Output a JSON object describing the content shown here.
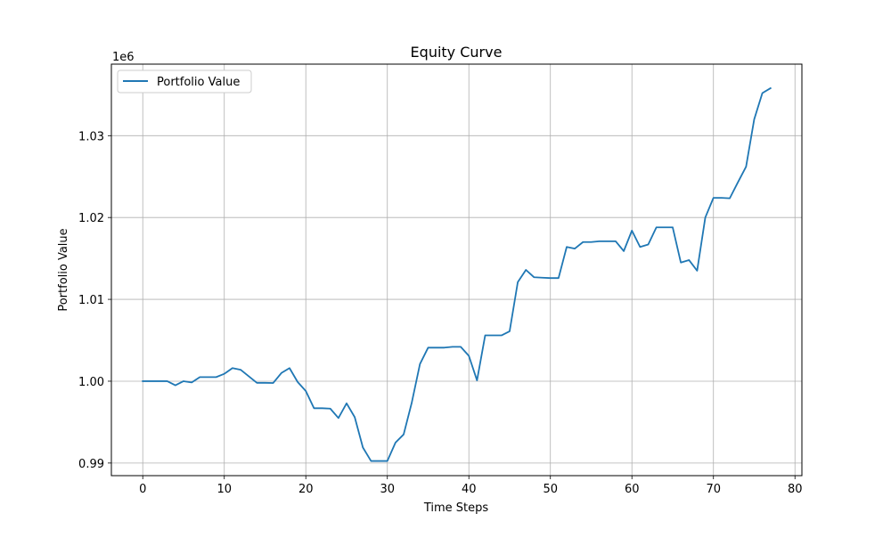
{
  "chart_data": {
    "type": "line",
    "title": "Equity Curve",
    "xlabel": "Time Steps",
    "ylabel": "Portfolio Value",
    "y_offset_label": "1e6",
    "xlim": [
      -3.85,
      80.85
    ],
    "ylim": [
      988460,
      1038740
    ],
    "x_ticks": [
      0,
      10,
      20,
      30,
      40,
      50,
      60,
      70,
      80
    ],
    "x_tick_labels": [
      "0",
      "10",
      "20",
      "30",
      "40",
      "50",
      "60",
      "70",
      "80"
    ],
    "y_ticks": [
      990000,
      1000000,
      1010000,
      1020000,
      1030000
    ],
    "y_tick_labels": [
      "0.99",
      "1.00",
      "1.01",
      "1.02",
      "1.03"
    ],
    "grid": true,
    "legend_position": "upper-left",
    "series": [
      {
        "name": "Portfolio Value",
        "color": "#1f77b4",
        "x": [
          0,
          1,
          2,
          3,
          4,
          5,
          6,
          7,
          8,
          9,
          10,
          11,
          12,
          13,
          14,
          15,
          16,
          17,
          18,
          19,
          20,
          21,
          22,
          23,
          24,
          25,
          26,
          27,
          28,
          29,
          30,
          31,
          32,
          33,
          34,
          35,
          36,
          37,
          38,
          39,
          40,
          41,
          42,
          43,
          44,
          45,
          46,
          47,
          48,
          49,
          50,
          51,
          52,
          53,
          54,
          55,
          56,
          57,
          58,
          59,
          60,
          61,
          62,
          63,
          64,
          65,
          66,
          67,
          68,
          69,
          70,
          71,
          72,
          73,
          74,
          75,
          76,
          77
        ],
        "values": [
          1000000,
          1000000,
          1000000,
          1000000,
          999500,
          1000000,
          999850,
          1000500,
          1000500,
          1000500,
          1000900,
          1001600,
          1001400,
          1000600,
          999800,
          999800,
          999780,
          1001000,
          1001600,
          999900,
          998800,
          996700,
          996700,
          996650,
          995500,
          997300,
          995600,
          991900,
          990250,
          990250,
          990250,
          992500,
          993500,
          997400,
          1002100,
          1004100,
          1004100,
          1004100,
          1004200,
          1004200,
          1003100,
          1000100,
          1005600,
          1005600,
          1005600,
          1006100,
          1012100,
          1013600,
          1012700,
          1012650,
          1012600,
          1012600,
          1016400,
          1016200,
          1017000,
          1017000,
          1017100,
          1017100,
          1017100,
          1015900,
          1018400,
          1016400,
          1016700,
          1018800,
          1018800,
          1018800,
          1014500,
          1014800,
          1013500,
          1020000,
          1022400,
          1022400,
          1022350,
          1024300,
          1026200,
          1032000,
          1035200,
          1035800
        ]
      }
    ]
  }
}
